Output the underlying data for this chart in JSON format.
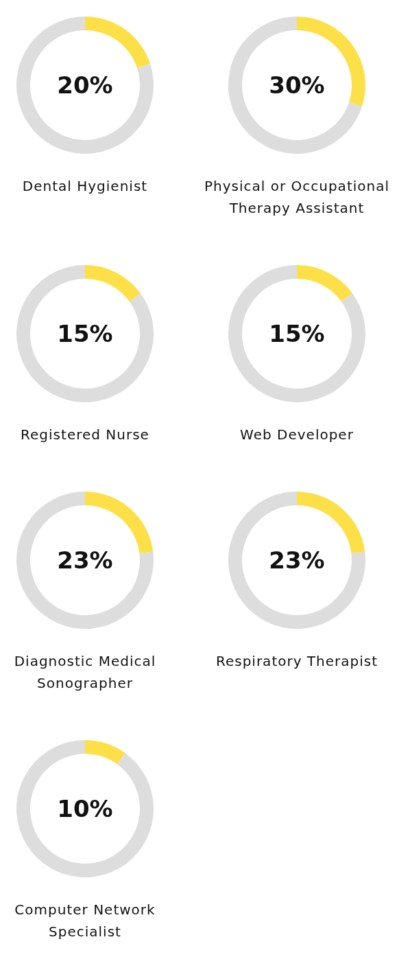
{
  "chart_data": [
    {
      "type": "donut",
      "title": "Dental Hygienist",
      "categories": [
        null,
        null
      ],
      "values": [
        20,
        80
      ],
      "colors": [
        "#fde047",
        "#dddddd"
      ],
      "annotations": [
        "20%"
      ]
    },
    {
      "type": "donut",
      "title": "Physical or Occupational Therapy Assistant",
      "categories": [
        null,
        null
      ],
      "values": [
        30,
        70
      ],
      "colors": [
        "#fde047",
        "#dddddd"
      ],
      "annotations": [
        "30%"
      ]
    },
    {
      "type": "donut",
      "title": "Registered Nurse",
      "categories": [
        null,
        null
      ],
      "values": [
        15,
        85
      ],
      "colors": [
        "#fde047",
        "#dddddd"
      ],
      "annotations": [
        "15%"
      ]
    },
    {
      "type": "donut",
      "title": "Web Developer",
      "categories": [
        null,
        null
      ],
      "values": [
        15,
        85
      ],
      "colors": [
        "#fde047",
        "#dddddd"
      ],
      "annotations": [
        "15%"
      ]
    },
    {
      "type": "donut",
      "title": "Diagnostic Medical Sonographer",
      "categories": [
        null,
        null
      ],
      "values": [
        23,
        77
      ],
      "colors": [
        "#fde047",
        "#dddddd"
      ],
      "annotations": [
        "23%"
      ]
    },
    {
      "type": "donut",
      "title": "Respiratory Therapist",
      "categories": [
        null,
        null
      ],
      "values": [
        23,
        77
      ],
      "colors": [
        "#fde047",
        "#dddddd"
      ],
      "annotations": [
        "23%"
      ]
    },
    {
      "type": "donut",
      "title": "Computer Network Specialist",
      "categories": [
        null,
        null
      ],
      "values": [
        10,
        90
      ],
      "colors": [
        "#fde047",
        "#dddddd"
      ],
      "annotations": [
        "10%"
      ]
    }
  ]
}
